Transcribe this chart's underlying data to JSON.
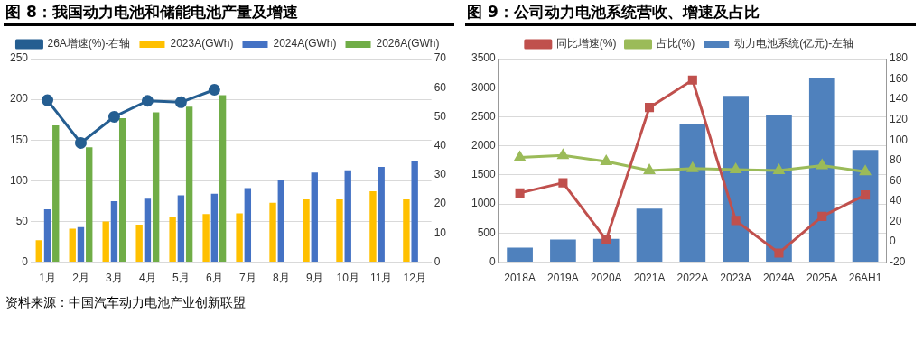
{
  "chart_data": [
    {
      "type": "bar",
      "title": "图 8：我国动力电池和储能电池产量及增速",
      "categories": [
        "1月",
        "2月",
        "3月",
        "4月",
        "5月",
        "6月",
        "7月",
        "8月",
        "9月",
        "10月",
        "11月",
        "12月"
      ],
      "series": [
        {
          "name": "2023A(GWh)",
          "color": "#ffc000",
          "values": [
            27,
            41,
            50,
            46,
            56,
            59,
            60,
            73,
            77,
            77,
            87,
            77
          ]
        },
        {
          "name": "2024A(GWh)",
          "color": "#4472c4",
          "values": [
            65,
            43,
            75,
            78,
            82,
            84,
            91,
            101,
            110,
            113,
            117,
            124
          ]
        },
        {
          "name": "2026A(GWh)",
          "color": "#70ad47",
          "values": [
            168,
            141,
            177,
            184,
            191,
            205,
            null,
            null,
            null,
            null,
            null,
            null
          ]
        },
        {
          "name": "26A增速(%)-右轴",
          "type": "line",
          "axis": "y2",
          "marker": "circle",
          "color": "#255e91",
          "values": [
            55.7,
            41,
            50,
            55.5,
            55,
            59.3,
            null,
            null,
            null,
            null,
            null,
            null
          ]
        }
      ],
      "ylim": [
        0,
        250
      ],
      "yticks": [
        0,
        50,
        100,
        150,
        200,
        250
      ],
      "y2lim": [
        0,
        70
      ],
      "y2ticks": [
        0,
        10,
        20,
        30,
        40,
        50,
        60,
        70
      ],
      "grid": "y",
      "legend": "top",
      "annotations": [
        "资料来源：中国汽车动力电池产业创新联盟"
      ]
    },
    {
      "type": "bar",
      "title": "图 9：公司动力电池系统营收、增速及占比",
      "categories": [
        "2018A",
        "2019A",
        "2020A",
        "2021A",
        "2022A",
        "2023A",
        "2024A",
        "2025A",
        "26AH1"
      ],
      "series": [
        {
          "name": "动力电池系统(亿元)-左轴",
          "color": "#4f81bd",
          "values": [
            250,
            390,
            400,
            920,
            2370,
            2860,
            2540,
            3170,
            1930
          ]
        },
        {
          "name": "同比增速(%)",
          "type": "line",
          "axis": "y2",
          "marker": "square",
          "color": "#c0504d",
          "values": [
            48,
            58,
            2,
            132,
            159,
            21,
            -11,
            25,
            46
          ]
        },
        {
          "name": "占比(%)",
          "type": "line",
          "axis": "y2",
          "marker": "triangle",
          "color": "#9bbb59",
          "values": [
            83,
            85,
            79,
            70,
            72,
            71,
            70,
            75,
            69
          ]
        }
      ],
      "ylim": [
        0,
        3500
      ],
      "yticks": [
        0,
        500,
        1000,
        1500,
        2000,
        2500,
        3000,
        3500
      ],
      "y2lim": [
        -20,
        180
      ],
      "y2ticks": [
        -20,
        0,
        20,
        40,
        60,
        80,
        100,
        120,
        140,
        160,
        180
      ],
      "grid": "y",
      "legend": "top"
    }
  ]
}
